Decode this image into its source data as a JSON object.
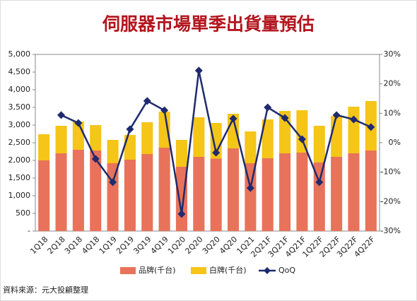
{
  "chart_data": {
    "type": "bar",
    "title": "伺服器市場單季出貨量預估",
    "note": "資料來源：元大投顧整理",
    "categories": [
      "1Q18",
      "2Q18",
      "3Q18",
      "4Q18",
      "1Q19",
      "2Q19",
      "3Q19",
      "4Q19",
      "1Q20",
      "2Q20",
      "3Q20",
      "4Q20",
      "1Q21",
      "2Q21F",
      "3Q21F",
      "4Q21F",
      "1Q22F",
      "2Q22F",
      "3Q22F",
      "4Q22F"
    ],
    "stacked": true,
    "series": [
      {
        "name": "品牌(千台)",
        "color": "#e8735a",
        "values": [
          2000,
          2200,
          2300,
          2280,
          1920,
          2020,
          2180,
          2360,
          1820,
          2100,
          2050,
          2340,
          1920,
          2060,
          2200,
          2220,
          1940,
          2100,
          2200,
          2280
        ]
      },
      {
        "name": "白牌(千台)",
        "color": "#f5c518",
        "values": [
          740,
          780,
          800,
          720,
          660,
          700,
          900,
          1020,
          760,
          1120,
          1010,
          980,
          900,
          1100,
          1200,
          1200,
          1040,
          1160,
          1320,
          1400
        ]
      },
      {
        "name": "QoQ",
        "type": "line",
        "axis": "y2",
        "color": "#1f2a6e",
        "values": [
          null,
          9.4,
          6.7,
          -5.5,
          -13.4,
          4.6,
          14.2,
          11.0,
          -24.2,
          24.5,
          -3.4,
          8.2,
          -15.4,
          12.0,
          8.4,
          1.2,
          -13.4,
          9.4,
          7.9,
          5.3
        ]
      }
    ],
    "ylim": [
      0,
      5000
    ],
    "yticks": [
      {
        "value": 0,
        "label": "-"
      },
      500,
      {
        "value": 1000,
        "label": "1,000"
      },
      {
        "value": 1500,
        "label": "1,500"
      },
      {
        "value": 2000,
        "label": "2,000"
      },
      {
        "value": 2500,
        "label": "2,500"
      },
      {
        "value": 3000,
        "label": "3,000"
      },
      {
        "value": 3500,
        "label": "3,500"
      },
      {
        "value": 4000,
        "label": "4,000"
      },
      {
        "value": 4500,
        "label": "4,500"
      },
      {
        "value": 5000,
        "label": "5,000"
      }
    ],
    "y2lim": [
      -30,
      30
    ],
    "y2ticks": [
      {
        "value": -30,
        "label": "-30%"
      },
      {
        "value": -20,
        "label": "-20%"
      },
      {
        "value": -10,
        "label": "-10%"
      },
      {
        "value": 0,
        "label": "0%"
      },
      {
        "value": 10,
        "label": "10%"
      },
      {
        "value": 20,
        "label": "20%"
      },
      {
        "value": 30,
        "label": "30%"
      }
    ],
    "legend": "bottom"
  }
}
